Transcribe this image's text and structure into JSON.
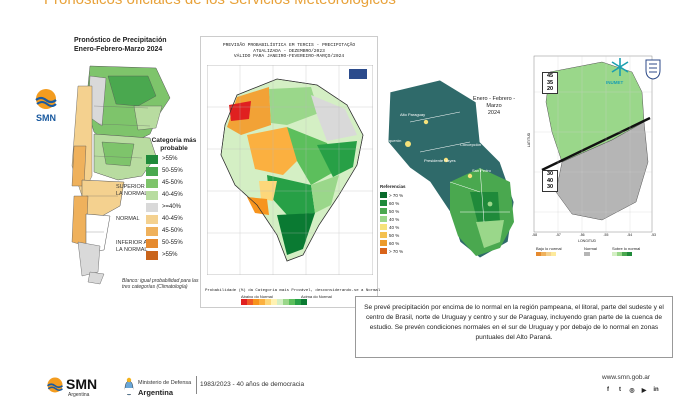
{
  "slide": {
    "title": "Pronósticos oficiales de los Servicios Meteorológicos"
  },
  "argentina": {
    "title_lines": [
      "Pronóstico de Precipitación",
      "Enero-Febrero-Marzo 2024"
    ],
    "logo_text": "SMN",
    "category_header": [
      "Categoría más",
      "probable"
    ],
    "groups": {
      "above": [
        "SUPERIOR A",
        "LA NORMAL"
      ],
      "normal": "NORMAL",
      "below": [
        "INFERIOR A",
        "LA NORMAL"
      ]
    },
    "legend": [
      {
        "label": ">55%",
        "color": "#1f8a3a"
      },
      {
        "label": "50-55%",
        "color": "#4aa84f"
      },
      {
        "label": "45-50%",
        "color": "#7ec46b"
      },
      {
        "label": "40-45%",
        "color": "#b8dca0"
      },
      {
        "label": ">=40%",
        "color": "#d9d9d9"
      },
      {
        "label": "40-45%",
        "color": "#f4d18f"
      },
      {
        "label": "45-50%",
        "color": "#efb15c"
      },
      {
        "label": "50-55%",
        "color": "#e68a2e"
      },
      {
        "label": ">55%",
        "color": "#c9641b"
      }
    ],
    "footnote": "Blanco: igual probabilidad para las tres categorías (Climatología)"
  },
  "brasil": {
    "header_lines": [
      "PREVISÃO PROBABILÍSTICA EM TERCIS - PRECIPITAÇÃO",
      "ATUALIZADA - DEZEMBRO/2023",
      "VÁLIDO PARA JANEIRO-FEVEREIRO-MARÇO/2024"
    ],
    "footer": "Probabilidade (%) da Categoria mais Provável, desconsiderando-se a Normal",
    "below_label": "Abaixo do Normal",
    "above_label": "Acima do Normal",
    "scale_colors": [
      "#e02020",
      "#f05a28",
      "#f7941d",
      "#fbb040",
      "#fdd77a",
      "#fff2b3",
      "#d4efc4",
      "#9ad78a",
      "#5cbf5c",
      "#27a046",
      "#0a7a32"
    ]
  },
  "paraguay": {
    "title_lines": [
      "Enero - Febrero - Marzo",
      "2024"
    ],
    "legend_title": "Referencias",
    "legend": [
      {
        "label": "> 70 %",
        "color": "#0a6b2c"
      },
      {
        "label": "60 %",
        "color": "#1f8a3a"
      },
      {
        "label": "50 %",
        "color": "#4aa84f"
      },
      {
        "label": "40 %",
        "color": "#9ad78a"
      },
      {
        "label": "40 %",
        "color": "#f6e27a"
      },
      {
        "label": "50 %",
        "color": "#f4c150"
      },
      {
        "label": "60 %",
        "color": "#ec9a2a"
      },
      {
        "label": "> 70 %",
        "color": "#d9641b"
      }
    ],
    "region_labels": [
      "Alto Paraguay",
      "Boquerón",
      "Presidente Hayes",
      "Concepción",
      "San Pedro"
    ]
  },
  "uruguay": {
    "upper_probs": [
      "45",
      "35",
      "20"
    ],
    "lower_probs": [
      "30",
      "40",
      "30"
    ],
    "axis_label": "LONGITUD",
    "lat_label": "LATITUD",
    "lon_ticks": [
      "-58",
      "-57",
      "-56",
      "-55",
      "-54",
      "-53"
    ],
    "legend_groups": [
      "Bajo lo normal",
      "Normal",
      "Sobre lo normal"
    ],
    "logo_text": "INUMET"
  },
  "info": {
    "text": "Se prevé precipitación por encima de lo normal en la región pampeana, el litoral, parte del sudeste y el centro de Brasil, norte de Uruguay y centro y sur de Paraguay, incluyendo gran parte de la cuenca de estudio. Se prevén condiciones normales en el sur de Uruguay y por debajo de lo normal en zonas puntuales del Alto Paraná."
  },
  "footer": {
    "smn_name": "SMN",
    "smn_sub": "Argentina",
    "ministry_line1": "Ministerio de Defensa",
    "ministry_line2": "Argentina",
    "democracy": "1983/2023 - 40 años de democracia",
    "url": "www.smn.gob.ar",
    "social_icons": [
      "facebook-icon",
      "twitter-icon",
      "instagram-icon",
      "youtube-icon",
      "linkedin-icon"
    ]
  }
}
